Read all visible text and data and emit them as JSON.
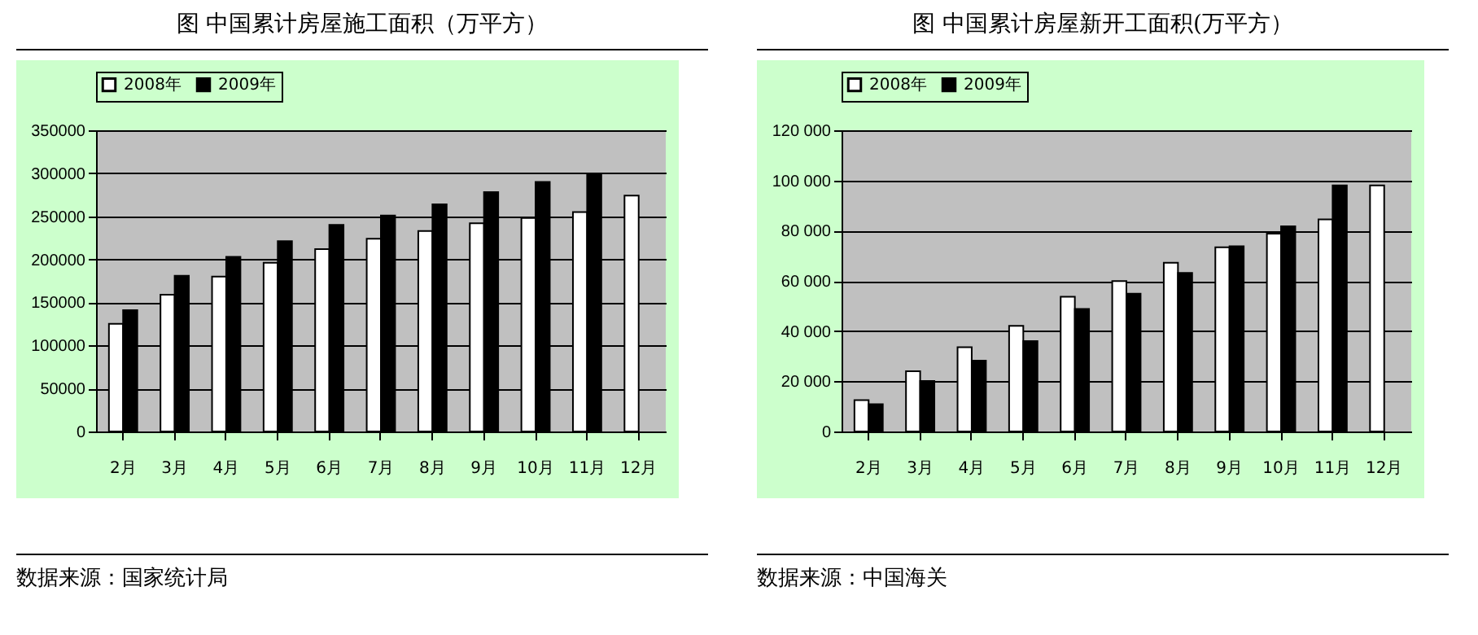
{
  "chart_data": [
    {
      "type": "bar",
      "title": "图  中国累计房屋施工面积（万平方）",
      "categories": [
        "2月",
        "3月",
        "4月",
        "5月",
        "6月",
        "7月",
        "8月",
        "9月",
        "10月",
        "11月",
        "12月"
      ],
      "series": [
        {
          "name": "2008年",
          "color": "#ffffff",
          "values": [
            125000,
            159000,
            180000,
            196000,
            212000,
            224000,
            233000,
            242000,
            248000,
            255000,
            274000
          ]
        },
        {
          "name": "2009年",
          "color": "#000000",
          "values": [
            141000,
            181000,
            203000,
            221000,
            240000,
            251000,
            264000,
            278000,
            290000,
            299000,
            null
          ]
        }
      ],
      "ylim": [
        0,
        350000
      ],
      "yticks": [
        0,
        50000,
        100000,
        150000,
        200000,
        250000,
        300000,
        350000
      ],
      "grid": "y",
      "legend": "top",
      "annotations": [
        "数据来源：国家统计局"
      ]
    },
    {
      "type": "bar",
      "title": "图    中国累计房屋新开工面积(万平方）",
      "categories": [
        "2月",
        "3月",
        "4月",
        "5月",
        "6月",
        "7月",
        "8月",
        "9月",
        "10月",
        "11月",
        "12月"
      ],
      "series": [
        {
          "name": "2008年",
          "color": "#ffffff",
          "values": [
            12500,
            24000,
            33600,
            42100,
            53700,
            59900,
            67200,
            73400,
            78800,
            84500,
            98000
          ]
        },
        {
          "name": "2009年",
          "color": "#000000",
          "values": [
            10900,
            20100,
            28200,
            36000,
            48800,
            54900,
            63200,
            73800,
            81700,
            98000,
            null
          ]
        }
      ],
      "ylim": [
        0,
        120000
      ],
      "yticks": [
        0,
        {
          "value": 20000,
          "label": "20 000"
        },
        {
          "value": 40000,
          "label": "40 000"
        },
        {
          "value": 60000,
          "label": "60 000"
        },
        {
          "value": 80000,
          "label": "80 000"
        },
        {
          "value": 100000,
          "label": "100 000"
        },
        {
          "value": 120000,
          "label": "120 000"
        }
      ],
      "grid": "y",
      "legend": "top",
      "annotations": [
        "数据来源：中国海关"
      ]
    }
  ]
}
